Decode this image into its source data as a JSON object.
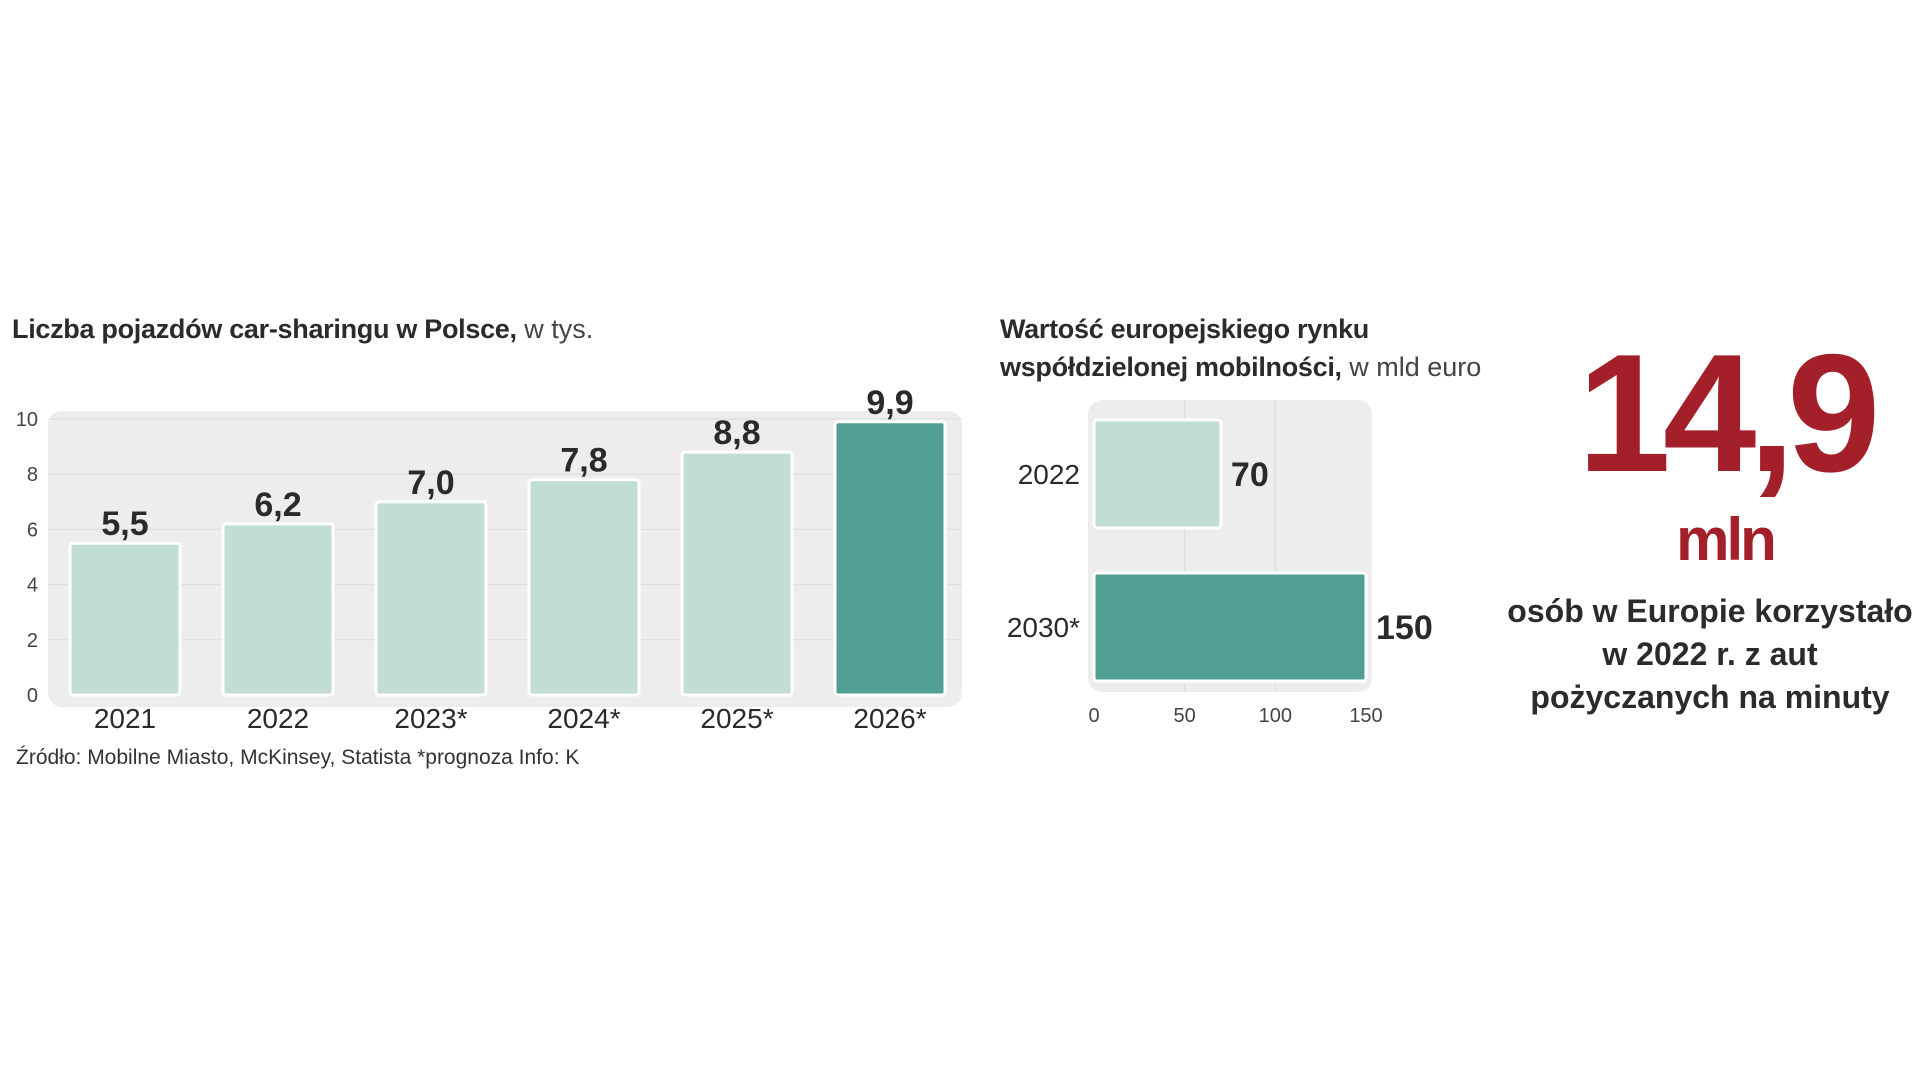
{
  "chart_data": [
    {
      "type": "bar",
      "title": "Liczba pojazdów car-sharingu w Polsce,",
      "unit": "w tys.",
      "categories": [
        "2021",
        "2022",
        "2023*",
        "2024*",
        "2025*",
        "2026*"
      ],
      "values": [
        5.5,
        6.2,
        7.0,
        7.8,
        8.8,
        9.9
      ],
      "value_labels": [
        "5,5",
        "6,2",
        "7,0",
        "7,8",
        "8,8",
        "9,9"
      ],
      "yticks": [
        "0",
        "2",
        "4",
        "6",
        "8",
        "10"
      ],
      "ylim": [
        0,
        10
      ],
      "highlight_index": 5,
      "colors": {
        "bar": "#c2dcd6",
        "highlight": "#519f93",
        "plot_bg": "#ededed"
      }
    },
    {
      "type": "bar",
      "orientation": "horizontal",
      "title_lines": [
        "Wartość europejskiego rynku",
        "współdzielonej mobilności,"
      ],
      "unit": "w mld euro",
      "categories": [
        "2022",
        "2030*"
      ],
      "values": [
        70,
        150
      ],
      "value_labels": [
        "70",
        "150"
      ],
      "xticks": [
        "0",
        "50",
        "100",
        "150"
      ],
      "xlim": [
        0,
        150
      ],
      "colors": {
        "bars": [
          "#c2dcd6",
          "#519f93"
        ],
        "plot_bg": "#ededed"
      }
    }
  ],
  "source": "Źródło: Mobilne Miasto, McKinsey, Statista *prognoza Info: K",
  "highlight": {
    "number": "14,9",
    "unit": "mln",
    "description": [
      "osób w Europie korzystało",
      "w 2022 r. z aut",
      "pożyczanych na minuty"
    ],
    "color": "#a3202a"
  }
}
